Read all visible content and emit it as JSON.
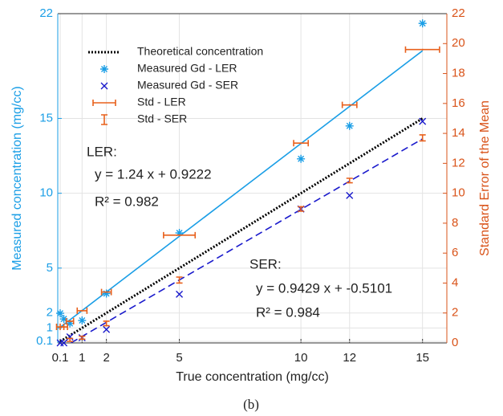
{
  "chart_data": {
    "type": "line",
    "x_label": "True concentration (mg/cc)",
    "y_label": "Measured concentration (mg/cc)",
    "y2_label": "Standard Error of the Mean",
    "caption": "(b)",
    "xlim": [
      0,
      16
    ],
    "xticks": [
      0.1,
      1,
      2,
      5,
      10,
      12,
      15
    ],
    "ylim": [
      0,
      22
    ],
    "yticks": [
      0.1,
      1,
      2,
      5,
      10,
      15,
      22
    ],
    "y2lim": [
      0,
      22
    ],
    "y2ticks": [
      0,
      2,
      4,
      6,
      8,
      10,
      12,
      14,
      16,
      18,
      20,
      22
    ],
    "grid": true,
    "legend": "upper left",
    "y_color": "#1a9ee6",
    "y2_color": "#d95319",
    "series": [
      {
        "name": "Theoretical concentration",
        "color": "#000000",
        "style": "dotted",
        "x": [
          0.1,
          15
        ],
        "values": [
          0.1,
          15
        ]
      },
      {
        "name": "Measured Gd - LER",
        "color": "#1a9ee6",
        "marker": "asterisk",
        "x": [
          0.1,
          0.25,
          0.5,
          1,
          2,
          5,
          10,
          12,
          15
        ],
        "values": [
          1.98,
          1.6,
          1.3,
          1.5,
          3.3,
          7.35,
          12.3,
          14.5,
          21.35
        ]
      },
      {
        "name": "Measured Gd - SER",
        "color": "#1a1acc",
        "marker": "x",
        "x": [
          0.1,
          0.25,
          0.5,
          1,
          2,
          5,
          10,
          12,
          15
        ],
        "values": [
          0.0,
          0.0,
          0.4,
          0.35,
          0.9,
          3.25,
          8.95,
          9.85,
          14.8
        ]
      },
      {
        "name": "Std - LER",
        "color": "#e8601c",
        "marker": "xerr",
        "axis": "y2",
        "x": [
          0.1,
          0.25,
          0.5,
          1,
          2,
          5,
          10,
          12,
          15
        ],
        "values": [
          1.07,
          1.07,
          1.45,
          2.15,
          3.4,
          7.2,
          13.35,
          15.9,
          19.6
        ],
        "xerr": [
          0.15,
          0.15,
          0.15,
          0.2,
          0.2,
          0.65,
          0.3,
          0.3,
          0.7
        ]
      },
      {
        "name": "Std - SER",
        "color": "#e8601c",
        "marker": "yerr",
        "axis": "y2",
        "x": [
          0.5,
          1,
          2,
          5,
          10,
          12,
          15
        ],
        "values": [
          0.2,
          0.35,
          1.3,
          4.2,
          8.95,
          10.85,
          13.7
        ],
        "yerr": [
          0.1,
          0.1,
          0.15,
          0.2,
          0.15,
          0.15,
          0.2
        ]
      }
    ],
    "fits": [
      {
        "color": "#1a9ee6",
        "style": "solid",
        "x": [
          0.1,
          15
        ],
        "values": [
          1.046,
          19.5222
        ]
      },
      {
        "color": "#1a1acc",
        "style": "dashed",
        "x": [
          0.55,
          15
        ],
        "values": [
          0.0085,
          13.6334
        ]
      }
    ],
    "annotations": [
      "LER:",
      "y = 1.24 x + 0.9222",
      "R² = 0.982",
      "SER:",
      "y = 0.9429 x + -0.5101",
      "R² = 0.984"
    ]
  }
}
